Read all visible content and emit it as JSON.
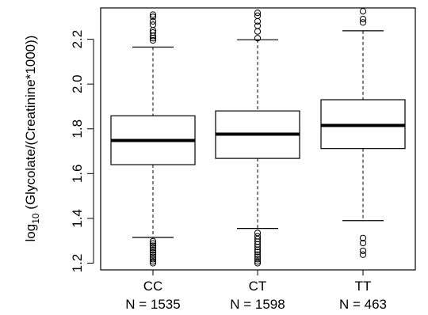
{
  "chart_data": {
    "type": "box",
    "ylabel_prefix": "log",
    "ylabel_sub": "10",
    "ylabel_suffix": " (Glycolate/(Creatinine*1000))",
    "ylim": [
      1.17,
      2.34
    ],
    "yticks": [
      {
        "value": 1.2,
        "label": "1.2"
      },
      {
        "value": 1.4,
        "label": "1.4"
      },
      {
        "value": 1.6,
        "label": "1.6"
      },
      {
        "value": 1.8,
        "label": "1.8"
      },
      {
        "value": 2.0,
        "label": "2.0"
      },
      {
        "value": 2.2,
        "label": "2.2"
      }
    ],
    "groups": [
      {
        "category": "CC",
        "n_label": "N = 1535",
        "whisker_low": 1.315,
        "q1": 1.64,
        "median": 1.748,
        "q3": 1.858,
        "whisker_high": 2.165,
        "outliers": [
          1.2,
          1.208,
          1.218,
          1.228,
          1.238,
          1.248,
          1.258,
          1.268,
          1.278,
          1.288,
          1.298,
          2.195,
          2.205,
          2.215,
          2.23,
          2.24,
          2.265,
          2.28,
          2.3,
          2.31
        ]
      },
      {
        "category": "CT",
        "n_label": "N = 1598",
        "whisker_low": 1.355,
        "q1": 1.668,
        "median": 1.776,
        "q3": 1.88,
        "whisker_high": 2.198,
        "outliers": [
          1.2,
          1.208,
          1.218,
          1.228,
          1.238,
          1.25,
          1.26,
          1.272,
          1.284,
          1.296,
          1.308,
          1.32,
          1.335,
          2.205,
          2.235,
          2.26,
          2.28,
          2.305,
          2.318
        ]
      },
      {
        "category": "TT",
        "n_label": "N = 463",
        "whisker_low": 1.39,
        "q1": 1.712,
        "median": 1.815,
        "q3": 1.93,
        "whisker_high": 2.238,
        "outliers": [
          1.238,
          1.255,
          1.29,
          1.312,
          2.275,
          2.29,
          2.325
        ]
      }
    ]
  }
}
